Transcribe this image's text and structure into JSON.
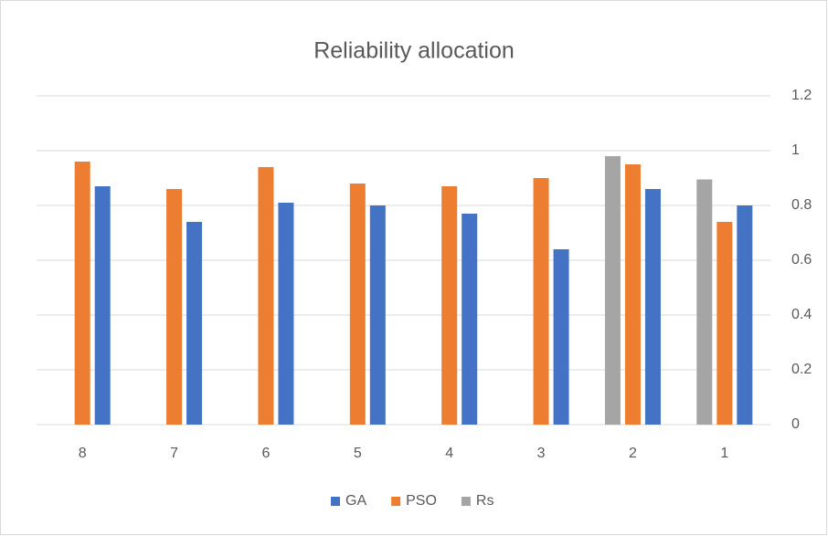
{
  "chart_data": {
    "type": "bar",
    "title": "Reliability allocation",
    "categories": [
      "1",
      "2",
      "3",
      "4",
      "5",
      "6",
      "7",
      "8"
    ],
    "xreverse": true,
    "series": [
      {
        "name": "GA",
        "color": "#4472c4",
        "values": [
          0.8,
          0.86,
          0.64,
          0.77,
          0.8,
          0.81,
          0.74,
          0.87
        ]
      },
      {
        "name": "PSO",
        "color": "#ed7d31",
        "values": [
          0.74,
          0.95,
          0.9,
          0.87,
          0.88,
          0.94,
          0.86,
          0.96
        ]
      },
      {
        "name": "Rs",
        "color": "#a5a5a5",
        "values": [
          0.895,
          0.98,
          null,
          null,
          null,
          null,
          null,
          null
        ]
      }
    ],
    "ylim": [
      0,
      1.2
    ],
    "yticks": [
      0,
      0.2,
      0.4,
      0.6,
      0.8,
      1,
      1.2
    ],
    "yaxis_side": "right",
    "grid": true,
    "legend": "bottom"
  }
}
